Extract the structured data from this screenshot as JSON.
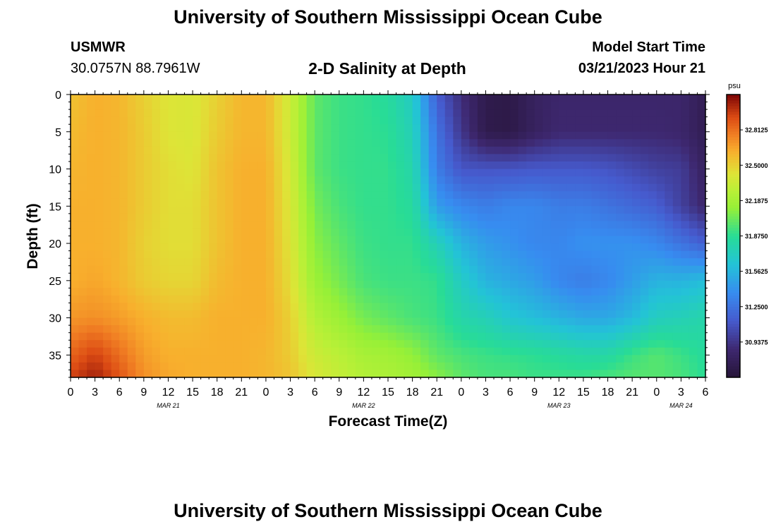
{
  "header": {
    "title": "University of Southern Mississippi Ocean Cube",
    "station": "USMWR",
    "coords": "30.0757N  88.7961W",
    "plot_title": "2-D Salinity at Depth",
    "model_start_label": "Model Start Time",
    "model_start_value": "03/21/2023 Hour 21"
  },
  "footer": {
    "title": "University of Southern Mississippi Ocean Cube"
  },
  "chart_data": {
    "type": "heatmap",
    "title": "2-D Salinity at Depth",
    "xlabel": "Forecast Time(Z)",
    "ylabel": "Depth (ft)",
    "x_tick_labels": [
      "0",
      "3",
      "6",
      "9",
      "12",
      "15",
      "18",
      "21",
      "0",
      "3",
      "6",
      "9",
      "12",
      "15",
      "18",
      "21",
      "0",
      "3",
      "6",
      "9",
      "12",
      "15",
      "18",
      "21",
      "0",
      "3",
      "6"
    ],
    "x_day_labels": [
      {
        "label": "MAR 21",
        "hour": 12
      },
      {
        "label": "MAR 22",
        "hour": 36
      },
      {
        "label": "MAR 23",
        "hour": 60
      },
      {
        "label": "MAR 24",
        "hour": 75
      }
    ],
    "xlim_hours": [
      0,
      78
    ],
    "ylim": [
      38,
      0
    ],
    "y_ticks": [
      0,
      5,
      10,
      15,
      20,
      25,
      30,
      35
    ],
    "colorbar": {
      "unit": "psu",
      "range": [
        30.625,
        33.125
      ],
      "tick_values": [
        32.8125,
        32.5,
        32.1875,
        31.875,
        31.5625,
        31.25,
        30.9375
      ],
      "tick_labels": [
        "32.8125",
        "32.5000",
        "32.1875",
        "31.8750",
        "31.5625",
        "31.2500",
        "30.9375"
      ]
    },
    "depths_ft": [
      0,
      5,
      10,
      15,
      20,
      25,
      30,
      35,
      38
    ],
    "hours": [
      0,
      3,
      6,
      9,
      12,
      15,
      18,
      21,
      24,
      27,
      30,
      33,
      36,
      39,
      42,
      45,
      48,
      51,
      54,
      57,
      60,
      63,
      66,
      69,
      72,
      75,
      78
    ],
    "salinity_psu": [
      [
        32.55,
        32.62,
        32.6,
        32.5,
        32.42,
        32.4,
        32.5,
        32.6,
        32.6,
        32.35,
        32.0,
        31.92,
        31.9,
        31.85,
        31.7,
        31.15,
        30.9,
        30.72,
        30.7,
        30.8,
        30.85,
        30.85,
        30.85,
        30.85,
        30.85,
        30.85,
        30.75
      ],
      [
        32.58,
        32.62,
        32.6,
        32.52,
        32.42,
        32.4,
        32.52,
        32.6,
        32.6,
        32.35,
        32.0,
        31.92,
        31.9,
        31.88,
        31.75,
        31.25,
        30.95,
        30.72,
        30.7,
        30.8,
        30.87,
        30.87,
        30.87,
        30.87,
        30.87,
        30.85,
        30.75
      ],
      [
        32.6,
        32.62,
        32.6,
        32.52,
        32.45,
        32.42,
        32.55,
        32.62,
        32.62,
        32.38,
        32.0,
        31.92,
        31.9,
        31.9,
        31.8,
        31.3,
        31.1,
        31.1,
        31.1,
        31.12,
        31.12,
        31.12,
        31.1,
        31.05,
        31.0,
        30.98,
        30.8
      ],
      [
        32.62,
        32.62,
        32.6,
        32.52,
        32.45,
        32.45,
        32.55,
        32.62,
        32.62,
        32.4,
        32.05,
        31.95,
        31.9,
        31.9,
        31.85,
        31.45,
        31.35,
        31.3,
        31.35,
        31.35,
        31.3,
        31.3,
        31.25,
        31.2,
        31.15,
        31.0,
        30.85
      ],
      [
        32.62,
        32.62,
        32.6,
        32.5,
        32.45,
        32.45,
        32.55,
        32.62,
        32.62,
        32.42,
        32.1,
        32.0,
        31.92,
        31.9,
        31.9,
        31.75,
        31.55,
        31.45,
        31.4,
        31.35,
        31.35,
        31.4,
        31.4,
        31.4,
        31.35,
        31.25,
        31.15
      ],
      [
        32.62,
        32.65,
        32.6,
        32.52,
        32.48,
        32.48,
        32.58,
        32.62,
        32.62,
        32.45,
        32.15,
        32.05,
        31.95,
        31.92,
        31.92,
        31.9,
        31.7,
        31.55,
        31.5,
        31.45,
        31.35,
        31.3,
        31.35,
        31.45,
        31.55,
        31.55,
        31.6
      ],
      [
        32.7,
        32.72,
        32.68,
        32.62,
        32.58,
        32.58,
        32.62,
        32.62,
        32.62,
        32.5,
        32.25,
        32.15,
        32.05,
        32.0,
        31.95,
        31.92,
        31.8,
        31.75,
        31.65,
        31.6,
        31.55,
        31.5,
        31.5,
        31.58,
        31.72,
        31.75,
        31.8
      ],
      [
        32.85,
        32.95,
        32.82,
        32.68,
        32.62,
        32.62,
        32.62,
        32.62,
        32.6,
        32.52,
        32.35,
        32.28,
        32.2,
        32.18,
        32.12,
        32.0,
        31.95,
        31.92,
        31.9,
        31.88,
        31.85,
        31.82,
        31.82,
        31.92,
        31.98,
        31.92,
        31.85
      ],
      [
        32.95,
        33.05,
        32.9,
        32.72,
        32.65,
        32.62,
        32.62,
        32.62,
        32.6,
        32.55,
        32.4,
        32.32,
        32.25,
        32.22,
        32.18,
        32.1,
        32.0,
        31.95,
        31.95,
        31.92,
        31.92,
        31.92,
        31.95,
        31.98,
        31.98,
        31.95,
        31.88
      ]
    ]
  }
}
